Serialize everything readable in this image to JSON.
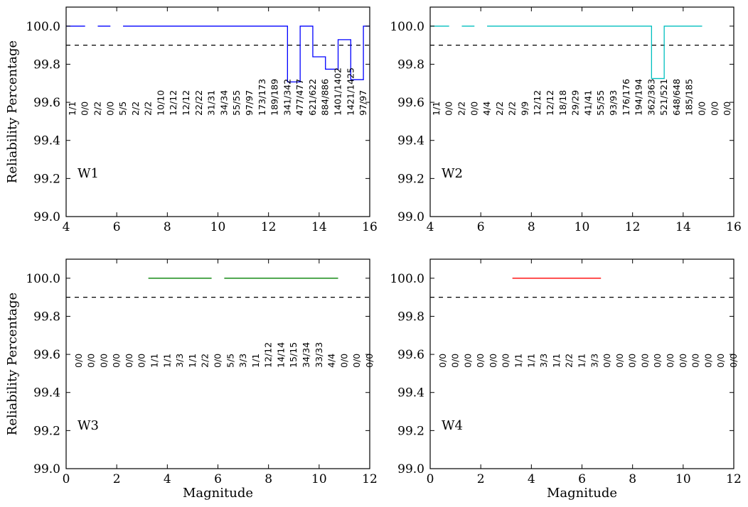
{
  "colors": {
    "W1": "#0000ff",
    "W2": "#00bfbf",
    "W3": "#008000",
    "W4": "#ff0000",
    "threshold": "#000000"
  },
  "chart_data": [
    {
      "type": "line",
      "panel_label": "W1",
      "xlim": [
        4,
        16
      ],
      "ylim": [
        99.0,
        100.1
      ],
      "xticks": [
        "4",
        "6",
        "8",
        "10",
        "12",
        "14",
        "16"
      ],
      "yticks": [
        "99.0",
        "99.2",
        "99.4",
        "99.6",
        "99.8",
        "100.0"
      ],
      "xlabel": "",
      "ylabel": "Reliability Percentage",
      "threshold": 99.9,
      "bin_start": 4.25,
      "bin_width": 0.5,
      "counts": [
        "1/1",
        "0/0",
        "2/2",
        "0/0",
        "5/5",
        "2/2",
        "2/2",
        "10/10",
        "12/12",
        "12/12",
        "22/22",
        "31/31",
        "34/34",
        "55/55",
        "97/97",
        "173/173",
        "189/189",
        "341/342",
        "477/477",
        "621/622",
        "884/886",
        "1401/1402",
        "1421/1425",
        "97/97"
      ],
      "segments": [
        {
          "x": [
            4.0,
            4.75
          ],
          "y": [
            100.0,
            100.0
          ]
        },
        {
          "x": [
            5.25,
            5.75
          ],
          "y": [
            100.0,
            100.0
          ]
        },
        {
          "x": [
            6.25,
            12.75,
            12.75,
            13.25,
            13.25,
            13.75,
            13.75,
            14.25,
            14.25,
            14.75,
            14.75,
            15.25,
            15.25,
            15.75,
            15.75,
            16.0
          ],
          "y": [
            100.0,
            100.0,
            99.707,
            99.707,
            100.0,
            100.0,
            99.839,
            99.839,
            99.774,
            99.774,
            99.929,
            99.929,
            99.719,
            99.719,
            100.0,
            100.0
          ]
        }
      ]
    },
    {
      "type": "line",
      "panel_label": "W2",
      "xlim": [
        4,
        16
      ],
      "ylim": [
        99.0,
        100.1
      ],
      "xticks": [
        "4",
        "6",
        "8",
        "10",
        "12",
        "14",
        "16"
      ],
      "yticks": [
        "99.0",
        "99.2",
        "99.4",
        "99.6",
        "99.8",
        "100.0"
      ],
      "xlabel": "",
      "ylabel": "",
      "threshold": 99.9,
      "bin_start": 4.25,
      "bin_width": 0.5,
      "counts": [
        "1/1",
        "0/0",
        "2/2",
        "0/0",
        "4/4",
        "2/2",
        "2/2",
        "9/9",
        "12/12",
        "12/12",
        "18/18",
        "29/29",
        "41/41",
        "55/55",
        "93/93",
        "176/176",
        "194/194",
        "362/363",
        "521/521",
        "648/648",
        "185/185",
        "0/0",
        "0/0",
        "0/0"
      ],
      "segments": [
        {
          "x": [
            4.0,
            4.75
          ],
          "y": [
            100.0,
            100.0
          ]
        },
        {
          "x": [
            5.25,
            5.75
          ],
          "y": [
            100.0,
            100.0
          ]
        },
        {
          "x": [
            6.25,
            12.75,
            12.75,
            13.25,
            13.25,
            14.75
          ],
          "y": [
            100.0,
            100.0,
            99.725,
            99.725,
            100.0,
            100.0
          ]
        }
      ]
    },
    {
      "type": "line",
      "panel_label": "W3",
      "xlim": [
        0,
        12
      ],
      "ylim": [
        99.0,
        100.1
      ],
      "xticks": [
        "0",
        "2",
        "4",
        "6",
        "8",
        "10",
        "12"
      ],
      "yticks": [
        "99.0",
        "99.2",
        "99.4",
        "99.6",
        "99.8",
        "100.0"
      ],
      "xlabel": "Magnitude",
      "ylabel": "Reliability Percentage",
      "threshold": 99.9,
      "bin_start": 0.5,
      "bin_width": 0.5,
      "counts": [
        "0/0",
        "0/0",
        "0/0",
        "0/0",
        "0/0",
        "0/0",
        "1/1",
        "1/1",
        "3/3",
        "1/1",
        "2/2",
        "0/0",
        "5/5",
        "3/3",
        "1/1",
        "12/12",
        "14/14",
        "15/15",
        "34/34",
        "33/33",
        "4/4",
        "0/0",
        "0/0",
        "0/0"
      ],
      "segments": [
        {
          "x": [
            3.25,
            5.75
          ],
          "y": [
            100.0,
            100.0
          ]
        },
        {
          "x": [
            6.25,
            10.75
          ],
          "y": [
            100.0,
            100.0
          ]
        }
      ]
    },
    {
      "type": "line",
      "panel_label": "W4",
      "xlim": [
        0,
        12
      ],
      "ylim": [
        99.0,
        100.1
      ],
      "xticks": [
        "0",
        "2",
        "4",
        "6",
        "8",
        "10",
        "12"
      ],
      "yticks": [
        "99.0",
        "99.2",
        "99.4",
        "99.6",
        "99.8",
        "100.0"
      ],
      "xlabel": "Magnitude",
      "ylabel": "",
      "threshold": 99.9,
      "bin_start": 0.5,
      "bin_width": 0.5,
      "counts": [
        "0/0",
        "0/0",
        "0/0",
        "0/0",
        "0/0",
        "0/0",
        "1/1",
        "1/1",
        "3/3",
        "1/1",
        "2/2",
        "1/1",
        "3/3",
        "0/0",
        "0/0",
        "0/0",
        "0/0",
        "0/0",
        "0/0",
        "0/0",
        "0/0",
        "0/0",
        "0/0",
        "0/0"
      ],
      "segments": [
        {
          "x": [
            3.25,
            6.75
          ],
          "y": [
            100.0,
            100.0
          ]
        }
      ]
    }
  ]
}
